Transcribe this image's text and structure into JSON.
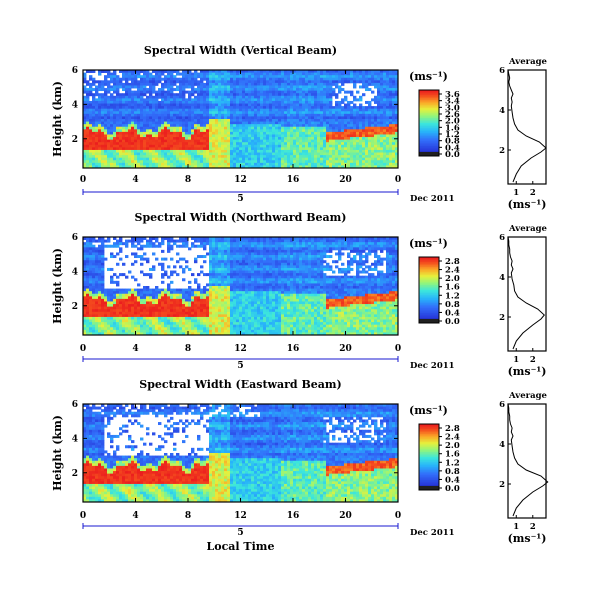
{
  "chart_data": [
    {
      "type": "heatmap",
      "title": "Spectral Width (Vertical Beam)",
      "ylabel": "Height (km)",
      "yticks": [
        "6",
        "4",
        "2"
      ],
      "xticks": [
        "0",
        "4",
        "8",
        "12",
        "16",
        "20",
        "0"
      ],
      "ylim": [
        0.3,
        6
      ],
      "xlim": [
        0,
        24
      ],
      "date_start": "5",
      "date_end": "Dec 2011",
      "colorbar": {
        "label": "(ms⁻¹)",
        "ticks": [
          "3.6",
          "3.4",
          "3.0",
          "2.6",
          "2.0",
          "1.6",
          "1.2",
          "0.8",
          "0.4",
          "0.0"
        ]
      },
      "average": {
        "title": "Average",
        "xlabel": "(ms⁻¹)",
        "xticks": [
          "1",
          "2"
        ],
        "yticks": [
          "6",
          "4",
          "2"
        ],
        "x": [
          0.8,
          1.0,
          1.3,
          1.9,
          2.5,
          2.8,
          2.4,
          1.6,
          1.1,
          0.9,
          0.8,
          0.75,
          0.7,
          0.75,
          0.7,
          0.8,
          0.7,
          0.6,
          0.55,
          0.6,
          0.55,
          0.5
        ],
        "y": [
          0.4,
          0.8,
          1.2,
          1.6,
          1.9,
          2.1,
          2.4,
          2.7,
          3.0,
          3.3,
          3.6,
          3.9,
          4.2,
          4.4,
          4.6,
          4.8,
          5.0,
          5.2,
          5.4,
          5.6,
          5.8,
          6.0
        ]
      }
    },
    {
      "type": "heatmap",
      "title": "Spectral Width (Northward Beam)",
      "ylabel": "Height (km)",
      "yticks": [
        "6",
        "4",
        "2"
      ],
      "xticks": [
        "0",
        "4",
        "8",
        "12",
        "16",
        "20",
        "0"
      ],
      "ylim": [
        0.3,
        6
      ],
      "xlim": [
        0,
        24
      ],
      "date_start": "5",
      "date_end": "Dec 2011",
      "colorbar": {
        "label": "(ms⁻¹)",
        "ticks": [
          "2.8",
          "2.4",
          "2.0",
          "1.6",
          "1.2",
          "0.8",
          "0.4",
          "0.0"
        ]
      },
      "average": {
        "title": "Average",
        "xlabel": "(ms⁻¹)",
        "xticks": [
          "1",
          "2"
        ],
        "yticks": [
          "6",
          "4",
          "2"
        ],
        "x": [
          0.8,
          1.0,
          1.4,
          2.0,
          2.5,
          2.7,
          2.3,
          1.6,
          1.1,
          0.9,
          0.85,
          0.75,
          0.7,
          0.8,
          0.7,
          0.75,
          0.65,
          0.6,
          0.6,
          0.55,
          0.55,
          0.5
        ],
        "y": [
          0.4,
          0.8,
          1.2,
          1.6,
          1.9,
          2.1,
          2.4,
          2.7,
          3.0,
          3.3,
          3.6,
          3.9,
          4.2,
          4.4,
          4.6,
          4.8,
          5.0,
          5.2,
          5.4,
          5.6,
          5.8,
          6.0
        ]
      }
    },
    {
      "type": "heatmap",
      "title": "Spectral Width (Eastward Beam)",
      "ylabel": "Height (km)",
      "yticks": [
        "6",
        "4",
        "2"
      ],
      "xticks": [
        "0",
        "4",
        "8",
        "12",
        "16",
        "20",
        "0"
      ],
      "xlabel": "Local Time",
      "ylim": [
        0.3,
        6
      ],
      "xlim": [
        0,
        24
      ],
      "date_start": "5",
      "date_end": "Dec 2011",
      "colorbar": {
        "label": "(ms⁻¹)",
        "ticks": [
          "2.8",
          "2.4",
          "2.0",
          "1.6",
          "1.2",
          "0.8",
          "0.4",
          "0.0"
        ]
      },
      "average": {
        "title": "Average",
        "xlabel": "(ms⁻¹)",
        "xticks": [
          "1",
          "2"
        ],
        "yticks": [
          "6",
          "4",
          "2"
        ],
        "x": [
          0.8,
          1.0,
          1.4,
          2.0,
          2.6,
          2.9,
          2.5,
          1.6,
          1.1,
          0.9,
          0.8,
          0.75,
          0.7,
          0.8,
          0.7,
          0.75,
          0.65,
          0.6,
          0.6,
          0.55,
          0.55,
          0.5
        ],
        "y": [
          0.4,
          0.8,
          1.2,
          1.6,
          1.9,
          2.1,
          2.4,
          2.7,
          3.0,
          3.3,
          3.6,
          3.9,
          4.2,
          4.4,
          4.6,
          4.8,
          5.0,
          5.2,
          5.4,
          5.6,
          5.8,
          6.0
        ]
      }
    }
  ],
  "colors": {
    "axis": "#000000",
    "date_bar": "#1a1ad0",
    "red": "#ee2222",
    "blue": "#3050d8"
  }
}
